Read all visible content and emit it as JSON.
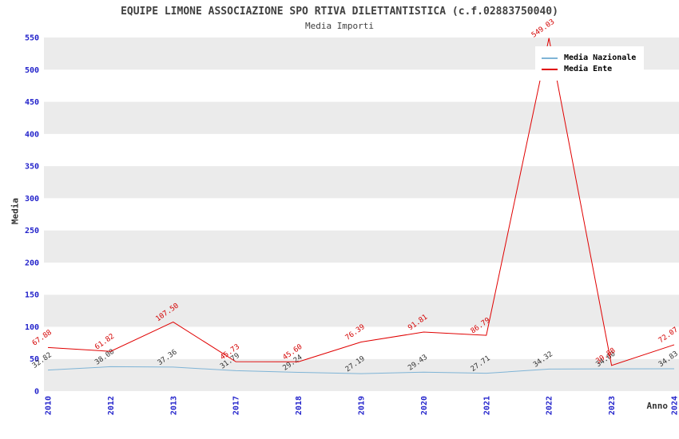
{
  "chart_data": {
    "type": "line",
    "title": "EQUIPE LIMONE ASSOCIAZIONE SPO RTIVA DILETTANTISTICA (c.f.02883750040)",
    "subtitle": "Media Importi",
    "xlabel": "Anno",
    "ylabel": "Media",
    "ylim": [
      0,
      550
    ],
    "ytick_step": 50,
    "grid": "alternating-horizontal-bands",
    "legend_position": "top-right",
    "band_colors": [
      "#ebebeb",
      "#ffffff"
    ],
    "axis_tick_color": "#2323cb",
    "categories": [
      "2010",
      "2012",
      "2013",
      "2017",
      "2018",
      "2019",
      "2020",
      "2021",
      "2022",
      "2023",
      "2024"
    ],
    "series": [
      {
        "name": "Media Nazionale",
        "color": "#7fb4d6",
        "label_color": "#333333",
        "values": [
          32.82,
          38.0,
          37.36,
          31.79,
          29.24,
          27.19,
          29.43,
          27.71,
          34.32,
          34.6,
          34.83
        ]
      },
      {
        "name": "Media Ente",
        "color": "#e00000",
        "label_color": "#d40000",
        "values": [
          67.88,
          61.82,
          107.5,
          45.73,
          45.6,
          76.39,
          91.81,
          86.79,
          549.03,
          39.88,
          72.07
        ]
      }
    ]
  }
}
